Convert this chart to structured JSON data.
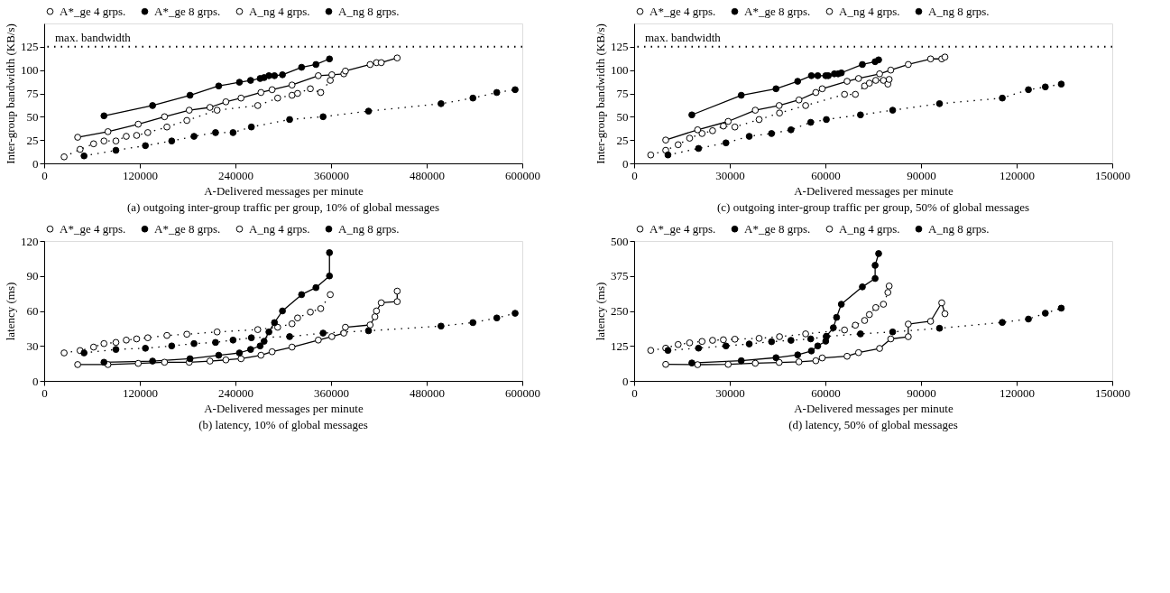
{
  "chart_data": [
    {
      "type": "line",
      "title": "(a) outgoing inter-group traffic per group, 10% of global messages",
      "xlabel": "A-Delivered messages per minute",
      "ylabel": "Inter-group bandwidth (KB/s)",
      "xlim": [
        0,
        600000
      ],
      "xticks": [
        0,
        120000,
        240000,
        360000,
        480000,
        600000
      ],
      "ylim": [
        0,
        150
      ],
      "yticks": [
        0,
        25,
        50,
        75,
        100,
        125
      ],
      "grid": false,
      "legend": "top",
      "ref_lines": [
        {
          "axis": "y",
          "value": 125,
          "label": "max. bandwidth",
          "line_style": "dotted",
          "color": "#000000"
        }
      ],
      "series": [
        {
          "name": "A*_ge 4 grps.",
          "color": "#000000",
          "line_style": "dotted",
          "marker": "circle",
          "x": [
            25000,
            45000,
            62000,
            75000,
            90000,
            103000,
            116000,
            130000,
            154000,
            179000,
            217000,
            268000,
            293000,
            311000,
            318000,
            334000,
            347000,
            359000
          ],
          "values": [
            7,
            15,
            21,
            24,
            24,
            29,
            30,
            33,
            39,
            46,
            57,
            62,
            70,
            73,
            75,
            80,
            76,
            89
          ]
        },
        {
          "name": "A*_ge 8 grps.",
          "color": "#000000",
          "line_style": "dotted",
          "marker": "circle",
          "x": [
            50000,
            90000,
            127000,
            160000,
            188000,
            215000,
            237000,
            260000,
            308000,
            350000,
            407000,
            498000,
            538000,
            568000,
            591000
          ],
          "values": [
            8,
            14,
            19,
            24,
            29,
            33,
            33,
            39,
            47,
            50,
            56,
            64,
            70,
            76,
            79
          ]
        },
        {
          "name": "A_ng 4 grps.",
          "color": "#000000",
          "line_style": "solid",
          "marker": "circle",
          "x": [
            42000,
            80000,
            118000,
            151000,
            182000,
            208000,
            228000,
            247000,
            272000,
            286000,
            311000,
            344000,
            361000,
            376000,
            378000,
            409000,
            417000,
            423000,
            443000
          ],
          "values": [
            28,
            34,
            42,
            50,
            57,
            60,
            66,
            70,
            76,
            79,
            84,
            94,
            95,
            96,
            99,
            106,
            108,
            108,
            113
          ]
        },
        {
          "name": "A_ng 8 grps.",
          "color": "#000000",
          "line_style": "solid",
          "marker": "circle",
          "x": [
            75000,
            136000,
            183000,
            219000,
            245000,
            259000,
            271000,
            276000,
            282000,
            289000,
            299000,
            323000,
            341000,
            358000
          ],
          "values": [
            51,
            62,
            73,
            83,
            87,
            89,
            91,
            92,
            94,
            94,
            95,
            103,
            106,
            112
          ]
        }
      ]
    },
    {
      "type": "line",
      "title": "(c) outgoing inter-group traffic per group, 50% of global messages",
      "xlabel": "A-Delivered messages per minute",
      "ylabel": "Inter-group bandwidth (KB/s)",
      "xlim": [
        0,
        150000
      ],
      "xticks": [
        0,
        30000,
        60000,
        90000,
        120000,
        150000
      ],
      "ylim": [
        0,
        150
      ],
      "yticks": [
        0,
        25,
        50,
        75,
        100,
        125
      ],
      "grid": false,
      "legend": "top",
      "ref_lines": [
        {
          "axis": "y",
          "value": 125,
          "label": "max. bandwidth",
          "line_style": "dotted",
          "color": "#000000"
        }
      ],
      "series": [
        {
          "name": "A*_ge 4 grps.",
          "color": "#000000",
          "line_style": "dotted",
          "marker": "circle",
          "x": [
            5200,
            9900,
            13800,
            17400,
            21300,
            24600,
            28000,
            31600,
            39200,
            45600,
            53800,
            66000,
            69400,
            72300,
            73800,
            75800,
            78200,
            79600,
            80000
          ],
          "values": [
            9,
            14,
            20,
            27,
            32,
            35,
            40,
            39,
            47,
            54,
            62,
            74,
            74,
            83,
            86,
            89,
            89,
            85,
            90
          ]
        },
        {
          "name": "A*_ge 8 grps.",
          "color": "#000000",
          "line_style": "dotted",
          "marker": "circle",
          "x": [
            10600,
            20200,
            28800,
            36100,
            43100,
            49200,
            55400,
            60300,
            71000,
            81100,
            95800,
            115500,
            123700,
            129000,
            134000
          ],
          "values": [
            9,
            16,
            22,
            29,
            32,
            36,
            44,
            47,
            52,
            57,
            64,
            70,
            79,
            82,
            85
          ]
        },
        {
          "name": "A_ng 4 grps.",
          "color": "#000000",
          "line_style": "solid",
          "marker": "circle",
          "x": [
            9900,
            19900,
            29500,
            38000,
            45500,
            51700,
            57000,
            59000,
            66800,
            70400,
            77000,
            80500,
            86000,
            93000,
            96500,
            97500
          ],
          "values": [
            25,
            36,
            45,
            57,
            62,
            68,
            76,
            80,
            88,
            91,
            96,
            100,
            106,
            112,
            112,
            114
          ]
        },
        {
          "name": "A_ng 8 grps.",
          "color": "#000000",
          "line_style": "solid",
          "marker": "circle",
          "x": [
            18100,
            33600,
            44500,
            51300,
            55600,
            57600,
            60100,
            60900,
            62800,
            64000,
            65000,
            71600,
            75600,
            76700
          ],
          "values": [
            52,
            73,
            80,
            88,
            94,
            94,
            94,
            94,
            96,
            96,
            97,
            106,
            109,
            111
          ]
        }
      ]
    },
    {
      "type": "line",
      "title": "(b) latency, 10% of global messages",
      "xlabel": "A-Delivered messages per minute",
      "ylabel": "latency (ms)",
      "xlim": [
        0,
        600000
      ],
      "xticks": [
        0,
        120000,
        240000,
        360000,
        480000,
        600000
      ],
      "ylim": [
        0,
        120
      ],
      "yticks": [
        0,
        30,
        60,
        90,
        120
      ],
      "grid": false,
      "legend": "top",
      "series": [
        {
          "name": "A*_ge 4 grps.",
          "color": "#000000",
          "line_style": "dotted",
          "marker": "circle",
          "x": [
            25000,
            45000,
            62000,
            75000,
            90000,
            103000,
            116000,
            130000,
            154000,
            179000,
            217000,
            268000,
            293000,
            311000,
            318000,
            334000,
            347000,
            359000
          ],
          "values": [
            24,
            26,
            29,
            32,
            33,
            35,
            36,
            37,
            39,
            40,
            42,
            44,
            46,
            49,
            54,
            59,
            62,
            74
          ]
        },
        {
          "name": "A*_ge 8 grps.",
          "color": "#000000",
          "line_style": "dotted",
          "marker": "circle",
          "x": [
            50000,
            90000,
            127000,
            160000,
            188000,
            215000,
            237000,
            260000,
            308000,
            350000,
            407000,
            498000,
            538000,
            568000,
            591000
          ],
          "values": [
            24,
            27,
            28,
            30,
            32,
            33,
            35,
            37,
            38,
            41,
            43,
            47,
            50,
            54,
            58
          ]
        },
        {
          "name": "A_ng 4 grps.",
          "color": "#000000",
          "line_style": "solid",
          "marker": "circle",
          "x": [
            42000,
            80000,
            118000,
            151000,
            182000,
            208000,
            228000,
            247000,
            272000,
            286000,
            311000,
            344000,
            361000,
            376000,
            378000,
            409000,
            415000,
            417000,
            423000,
            443000,
            443000
          ],
          "values": [
            14,
            14,
            15,
            16,
            16,
            17,
            18,
            19,
            22,
            25,
            29,
            35,
            38,
            41,
            46,
            48,
            55,
            60,
            67,
            68,
            77
          ]
        },
        {
          "name": "A_ng 8 grps.",
          "color": "#000000",
          "line_style": "solid",
          "marker": "circle",
          "x": [
            75000,
            136000,
            183000,
            219000,
            245000,
            259000,
            271000,
            276000,
            282000,
            289000,
            299000,
            323000,
            341000,
            358000,
            358000
          ],
          "values": [
            16,
            17,
            19,
            22,
            24,
            27,
            30,
            34,
            42,
            50,
            60,
            74,
            80,
            90,
            110
          ]
        }
      ]
    },
    {
      "type": "line",
      "title": "(d) latency, 50% of global messages",
      "xlabel": "A-Delivered messages per minute",
      "ylabel": "latency (ms)",
      "xlim": [
        0,
        150000
      ],
      "xticks": [
        0,
        30000,
        60000,
        90000,
        120000,
        150000
      ],
      "ylim": [
        0,
        500
      ],
      "yticks": [
        0,
        125,
        250,
        375,
        500
      ],
      "grid": false,
      "legend": "top",
      "series": [
        {
          "name": "A*_ge 4 grps.",
          "color": "#000000",
          "line_style": "dotted",
          "marker": "circle",
          "x": [
            5200,
            9900,
            13800,
            17400,
            21300,
            24600,
            28000,
            31600,
            39200,
            45600,
            53800,
            66000,
            69400,
            72300,
            73800,
            75800,
            78200,
            79600,
            80000
          ],
          "values": [
            109,
            117,
            130,
            136,
            141,
            145,
            147,
            149,
            152,
            158,
            168,
            182,
            199,
            216,
            237,
            262,
            274,
            316,
            339
          ]
        },
        {
          "name": "A*_ge 8 grps.",
          "color": "#000000",
          "line_style": "dotted",
          "marker": "circle",
          "x": [
            10600,
            20200,
            28800,
            36100,
            43100,
            49200,
            55400,
            60300,
            71000,
            81100,
            95800,
            115500,
            123700,
            129000,
            134000
          ],
          "values": [
            109,
            117,
            125,
            132,
            140,
            145,
            150,
            159,
            168,
            175,
            188,
            209,
            221,
            242,
            260
          ]
        },
        {
          "name": "A_ng 4 grps.",
          "color": "#000000",
          "line_style": "solid",
          "marker": "circle",
          "x": [
            9900,
            19900,
            29500,
            38000,
            45500,
            51700,
            57000,
            59000,
            66800,
            70400,
            77000,
            80500,
            86000,
            86000,
            93000,
            96500,
            97500
          ],
          "values": [
            59,
            58,
            59,
            63,
            66,
            68,
            72,
            82,
            88,
            101,
            116,
            150,
            158,
            203,
            213,
            279,
            240
          ]
        },
        {
          "name": "A_ng 8 grps.",
          "color": "#000000",
          "line_style": "solid",
          "marker": "circle",
          "x": [
            18100,
            33600,
            44500,
            51300,
            55600,
            57600,
            60100,
            60300,
            62500,
            63500,
            65000,
            71600,
            75600,
            75600,
            76700
          ],
          "values": [
            64,
            72,
            83,
            93,
            107,
            125,
            142,
            159,
            190,
            227,
            274,
            336,
            366,
            413,
            455
          ]
        }
      ]
    }
  ]
}
